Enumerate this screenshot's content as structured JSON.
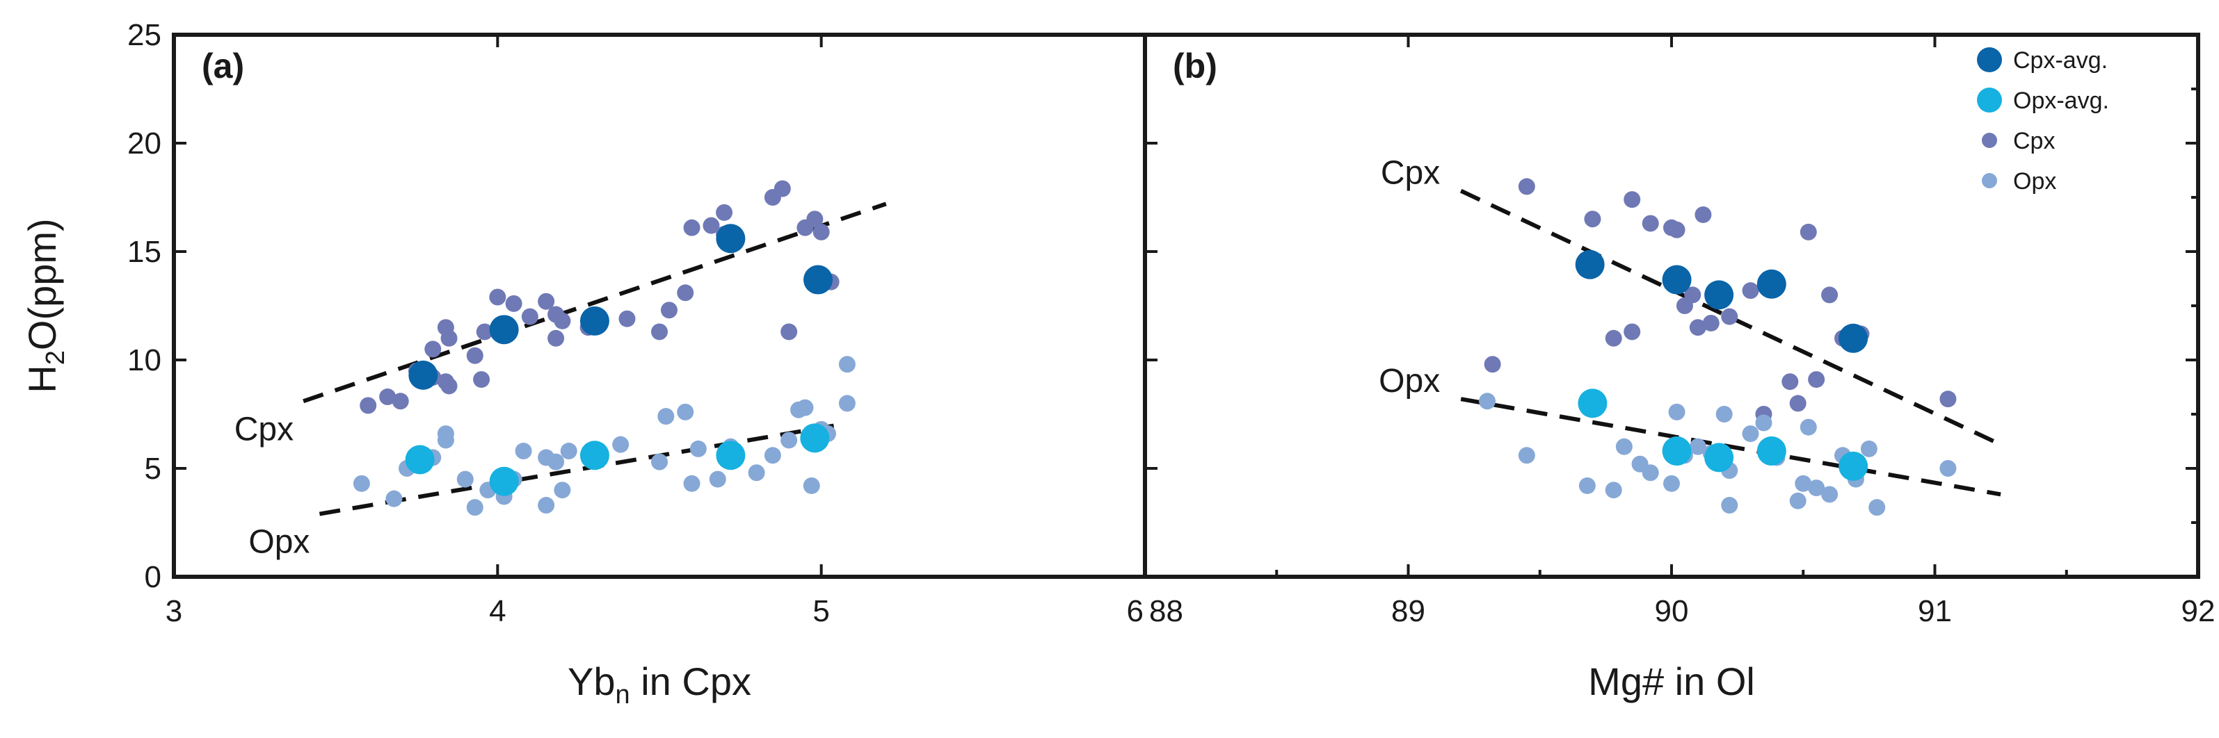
{
  "chart_data": [
    {
      "type": "scatter",
      "panel_label": "(a)",
      "xlabel_main": "Yb",
      "xlabel_sub": "n",
      "xlabel_rest": " in Cpx",
      "ylabel_main": "H",
      "ylabel_sub": "2",
      "ylabel_rest": "O(ppm)",
      "xlim": [
        3,
        6
      ],
      "ylim": [
        0,
        25
      ],
      "xticks": [
        3,
        4,
        5,
        6
      ],
      "yticks": [
        0,
        5,
        10,
        15,
        20,
        25
      ],
      "xtick_labels": [
        "3",
        "4",
        "5",
        "6"
      ],
      "ytick_labels": [
        "0",
        "5",
        "10",
        "15",
        "20",
        "25"
      ],
      "series": [
        {
          "name": "Cpx",
          "role": "cpx",
          "points": [
            [
              3.6,
              7.9
            ],
            [
              3.66,
              8.3
            ],
            [
              3.7,
              8.1
            ],
            [
              3.75,
              9.5
            ],
            [
              3.8,
              10.5
            ],
            [
              3.84,
              11.5
            ],
            [
              3.85,
              11.0
            ],
            [
              3.84,
              9.0
            ],
            [
              3.85,
              8.8
            ],
            [
              3.95,
              9.1
            ],
            [
              3.93,
              10.2
            ],
            [
              3.96,
              11.3
            ],
            [
              4.0,
              12.9
            ],
            [
              4.05,
              12.6
            ],
            [
              4.1,
              12.0
            ],
            [
              4.15,
              12.7
            ],
            [
              4.18,
              12.1
            ],
            [
              4.2,
              11.8
            ],
            [
              4.18,
              11.0
            ],
            [
              4.28,
              11.5
            ],
            [
              4.4,
              11.9
            ],
            [
              4.5,
              11.3
            ],
            [
              4.53,
              12.3
            ],
            [
              4.58,
              13.1
            ],
            [
              4.6,
              16.1
            ],
            [
              4.66,
              16.2
            ],
            [
              4.7,
              16.8
            ],
            [
              4.73,
              15.5
            ],
            [
              4.85,
              17.5
            ],
            [
              4.88,
              17.9
            ],
            [
              4.9,
              11.3
            ],
            [
              4.95,
              16.1
            ],
            [
              4.98,
              16.5
            ],
            [
              5.0,
              15.9
            ],
            [
              5.03,
              13.6
            ],
            [
              3.8,
              9.2
            ],
            [
              4.7,
              15.8
            ]
          ]
        },
        {
          "name": "Opx",
          "role": "opx",
          "points": [
            [
              3.58,
              4.3
            ],
            [
              3.68,
              3.6
            ],
            [
              3.72,
              5.0
            ],
            [
              3.8,
              5.5
            ],
            [
              3.84,
              6.3
            ],
            [
              3.84,
              6.6
            ],
            [
              3.9,
              4.5
            ],
            [
              3.93,
              3.2
            ],
            [
              3.97,
              4.0
            ],
            [
              4.02,
              3.7
            ],
            [
              4.05,
              4.5
            ],
            [
              4.08,
              5.8
            ],
            [
              4.15,
              5.5
            ],
            [
              4.18,
              5.3
            ],
            [
              4.15,
              3.3
            ],
            [
              4.2,
              4.0
            ],
            [
              4.22,
              5.8
            ],
            [
              4.3,
              5.4
            ],
            [
              4.38,
              6.1
            ],
            [
              4.5,
              5.3
            ],
            [
              4.52,
              7.4
            ],
            [
              4.58,
              7.6
            ],
            [
              4.6,
              4.3
            ],
            [
              4.62,
              5.9
            ],
            [
              4.68,
              4.5
            ],
            [
              4.72,
              6.0
            ],
            [
              4.8,
              4.8
            ],
            [
              4.85,
              5.6
            ],
            [
              4.9,
              6.3
            ],
            [
              4.93,
              7.7
            ],
            [
              4.95,
              7.8
            ],
            [
              4.97,
              4.2
            ],
            [
              5.0,
              6.8
            ],
            [
              5.02,
              6.6
            ],
            [
              5.08,
              9.8
            ],
            [
              5.08,
              8.0
            ]
          ]
        },
        {
          "name": "Cpx-avg.",
          "role": "cpx-avg",
          "points": [
            [
              3.77,
              9.3
            ],
            [
              4.02,
              11.4
            ],
            [
              4.3,
              11.8
            ],
            [
              4.72,
              15.6
            ],
            [
              4.99,
              13.7
            ]
          ]
        },
        {
          "name": "Opx-avg.",
          "role": "opx-avg",
          "points": [
            [
              3.76,
              5.4
            ],
            [
              4.02,
              4.4
            ],
            [
              4.3,
              5.6
            ],
            [
              4.72,
              5.6
            ],
            [
              4.98,
              6.4
            ]
          ]
        }
      ],
      "trend_lines": [
        {
          "label": "Cpx",
          "from": [
            3.4,
            8.1
          ],
          "to": [
            5.2,
            17.2
          ]
        },
        {
          "label": "Opx",
          "from": [
            3.45,
            2.9
          ],
          "to": [
            5.05,
            7.0
          ]
        }
      ]
    },
    {
      "type": "scatter",
      "panel_label": "(b)",
      "xlabel_main": "Mg# in Ol",
      "xlim": [
        88,
        92
      ],
      "ylim": [
        0,
        25
      ],
      "xticks": [
        88,
        89,
        90,
        91,
        92
      ],
      "yticks": [
        0,
        5,
        10,
        15,
        20,
        25
      ],
      "xtick_labels": [
        "88",
        "89",
        "90",
        "91",
        "92"
      ],
      "series": [
        {
          "name": "Cpx",
          "role": "cpx",
          "points": [
            [
              89.32,
              9.8
            ],
            [
              89.45,
              18.0
            ],
            [
              89.7,
              16.5
            ],
            [
              89.78,
              11.0
            ],
            [
              89.85,
              17.4
            ],
            [
              89.85,
              11.3
            ],
            [
              89.92,
              16.3
            ],
            [
              90.0,
              16.1
            ],
            [
              90.02,
              16.0
            ],
            [
              90.05,
              12.5
            ],
            [
              90.1,
              11.5
            ],
            [
              90.12,
              16.7
            ],
            [
              90.15,
              11.7
            ],
            [
              90.22,
              12.0
            ],
            [
              90.3,
              13.2
            ],
            [
              90.38,
              13.4
            ],
            [
              90.45,
              9.0
            ],
            [
              90.48,
              8.0
            ],
            [
              90.52,
              15.9
            ],
            [
              90.55,
              9.1
            ],
            [
              90.6,
              13.0
            ],
            [
              90.65,
              11.0
            ],
            [
              90.72,
              11.2
            ],
            [
              91.05,
              8.2
            ],
            [
              90.35,
              7.5
            ],
            [
              90.08,
              13.0
            ]
          ]
        },
        {
          "name": "Opx",
          "role": "opx",
          "points": [
            [
              89.3,
              8.1
            ],
            [
              89.45,
              5.6
            ],
            [
              89.68,
              4.2
            ],
            [
              89.78,
              4.0
            ],
            [
              89.82,
              6.0
            ],
            [
              89.88,
              5.2
            ],
            [
              89.92,
              4.8
            ],
            [
              90.0,
              4.3
            ],
            [
              90.02,
              7.6
            ],
            [
              90.05,
              5.6
            ],
            [
              90.1,
              6.0
            ],
            [
              90.15,
              5.7
            ],
            [
              90.2,
              7.5
            ],
            [
              90.22,
              4.9
            ],
            [
              90.22,
              3.3
            ],
            [
              90.3,
              6.6
            ],
            [
              90.35,
              7.1
            ],
            [
              90.4,
              5.5
            ],
            [
              90.48,
              3.5
            ],
            [
              90.5,
              4.3
            ],
            [
              90.52,
              6.9
            ],
            [
              90.55,
              4.1
            ],
            [
              90.6,
              3.8
            ],
            [
              90.65,
              5.6
            ],
            [
              90.7,
              4.5
            ],
            [
              90.78,
              3.2
            ],
            [
              91.05,
              5.0
            ],
            [
              90.75,
              5.9
            ]
          ]
        },
        {
          "name": "Cpx-avg.",
          "role": "cpx-avg",
          "points": [
            [
              89.69,
              14.4
            ],
            [
              90.02,
              13.7
            ],
            [
              90.18,
              13.0
            ],
            [
              90.38,
              13.5
            ],
            [
              90.69,
              11.0
            ]
          ]
        },
        {
          "name": "Opx-avg.",
          "role": "opx-avg",
          "points": [
            [
              89.7,
              8.0
            ],
            [
              90.02,
              5.8
            ],
            [
              90.18,
              5.5
            ],
            [
              90.38,
              5.8
            ],
            [
              90.69,
              5.1
            ]
          ]
        }
      ],
      "trend_lines": [
        {
          "label": "Cpx",
          "from": [
            89.2,
            17.8
          ],
          "to": [
            91.25,
            6.1
          ]
        },
        {
          "label": "Opx",
          "from": [
            89.2,
            8.2
          ],
          "to": [
            91.25,
            3.8
          ]
        }
      ],
      "legend": {
        "placement": "top-right",
        "entries": [
          {
            "label": "Cpx-avg.",
            "role": "cpx-avg"
          },
          {
            "label": "Opx-avg.",
            "role": "opx-avg"
          },
          {
            "label": "Cpx",
            "role": "cpx"
          },
          {
            "label": "Opx",
            "role": "opx"
          }
        ]
      }
    }
  ],
  "colors": {
    "cpx": "#6f79b5",
    "opx": "#86a8d6",
    "cpx-avg": "#0a64a8",
    "opx-avg": "#16b1e0",
    "axis": "#1a1a1a",
    "trend": "#111111"
  }
}
